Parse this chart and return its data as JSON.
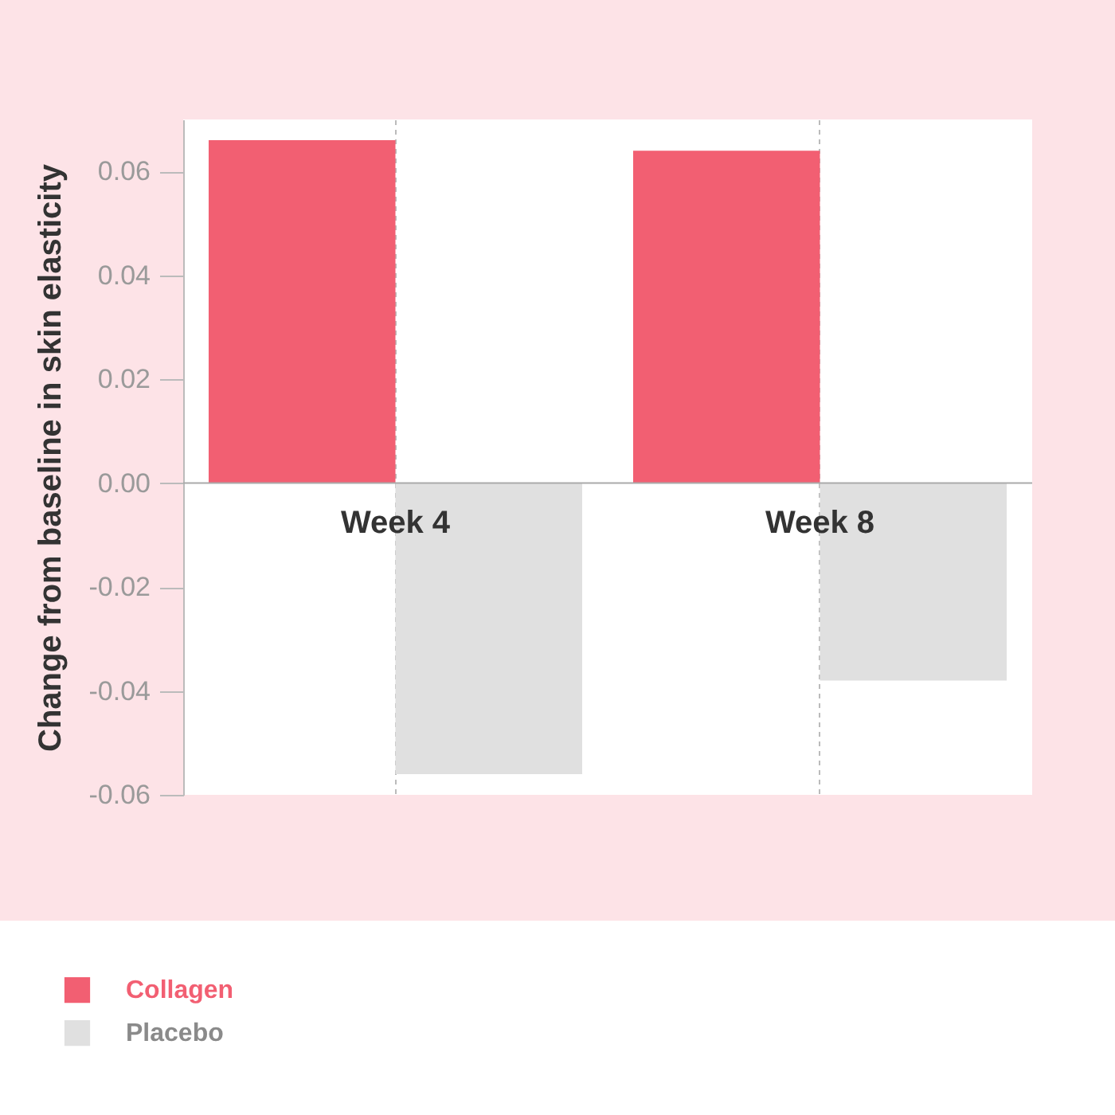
{
  "chart_data": {
    "type": "bar",
    "ylabel": "Change from baseline in skin elasticity",
    "categories": [
      "Week 4",
      "Week 8"
    ],
    "series": [
      {
        "name": "Collagen",
        "color": "#f25f72",
        "values": [
          0.066,
          0.064
        ]
      },
      {
        "name": "Placebo",
        "color": "#e0e0e0",
        "values": [
          -0.056,
          -0.038
        ]
      }
    ],
    "ylim": [
      -0.06,
      0.07
    ],
    "yticks": [
      {
        "value": -0.06,
        "label": "-0.06"
      },
      {
        "value": -0.04,
        "label": "-0.04"
      },
      {
        "value": -0.02,
        "label": "-0.02"
      },
      {
        "value": 0,
        "label": "0.00"
      },
      {
        "value": 0.02,
        "label": "0.02"
      },
      {
        "value": 0.04,
        "label": "0.04"
      },
      {
        "value": 0.06,
        "label": "0.06"
      }
    ],
    "grid": "x",
    "legend": "bottom left"
  }
}
